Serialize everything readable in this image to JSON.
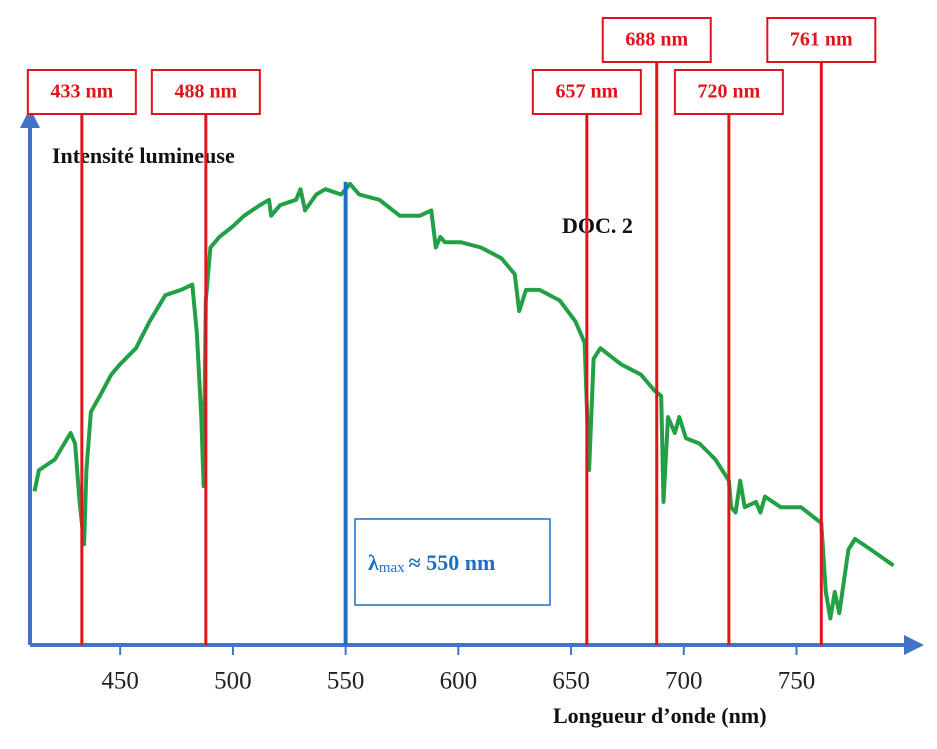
{
  "chart_data": {
    "type": "line",
    "y_label": "Intensité lumineuse",
    "x_label": "Longueur d’onde (nm)",
    "annotation": "DOC. 2",
    "color": "#22a045",
    "x": [
      412,
      414,
      421,
      428,
      430,
      432,
      434,
      435,
      437,
      441,
      446,
      450,
      457,
      463,
      470,
      477,
      482,
      484,
      486,
      487,
      488,
      490,
      494,
      500,
      505,
      512,
      516,
      517,
      521,
      528,
      530,
      532,
      537,
      541,
      548,
      552,
      556,
      565,
      574,
      583,
      588,
      590,
      592,
      594,
      601,
      610,
      619,
      625,
      627,
      630,
      636,
      645,
      652,
      656,
      658,
      660,
      663,
      672,
      681,
      687,
      690,
      691,
      693,
      696,
      698,
      701,
      707,
      714,
      720,
      721,
      723,
      725,
      727,
      732,
      734,
      736,
      743,
      752,
      761,
      763,
      765,
      767,
      769,
      773,
      776,
      783,
      793
    ],
    "values": [
      29,
      33,
      35,
      40,
      38,
      27,
      19,
      33,
      44,
      47,
      51,
      53,
      56,
      61,
      66,
      67,
      68,
      59,
      43,
      30,
      65,
      75,
      77,
      79,
      81,
      83,
      84,
      81,
      83,
      84,
      86,
      82,
      85,
      86,
      85,
      87,
      85,
      84,
      81,
      81,
      82,
      75,
      77,
      76,
      76,
      75,
      73,
      70,
      63,
      67,
      67,
      65,
      61,
      57,
      33,
      54,
      56,
      53,
      51,
      48,
      47,
      27,
      43,
      40,
      43,
      39,
      38,
      35,
      31,
      26,
      25,
      31,
      26,
      27,
      25,
      28,
      26,
      26,
      23,
      10,
      5,
      10,
      6,
      18,
      20,
      18,
      15
    ],
    "xlim": [
      410,
      803
    ],
    "ylim": [
      0,
      100
    ],
    "xticks": [
      450,
      500,
      550,
      600,
      650,
      700,
      750
    ],
    "lines": [
      {
        "value": 433,
        "label": "433 nm"
      },
      {
        "value": 488,
        "label": "488 nm"
      },
      {
        "value": 657,
        "label": "657 nm"
      },
      {
        "value": 688,
        "label": "688 nm"
      },
      {
        "value": 720,
        "label": "720 nm"
      },
      {
        "value": 761,
        "label": "761 nm"
      }
    ],
    "max_line": {
      "value": 550,
      "symbol": "λ",
      "subscript": "max",
      "text": "≈ 550 nm"
    }
  }
}
